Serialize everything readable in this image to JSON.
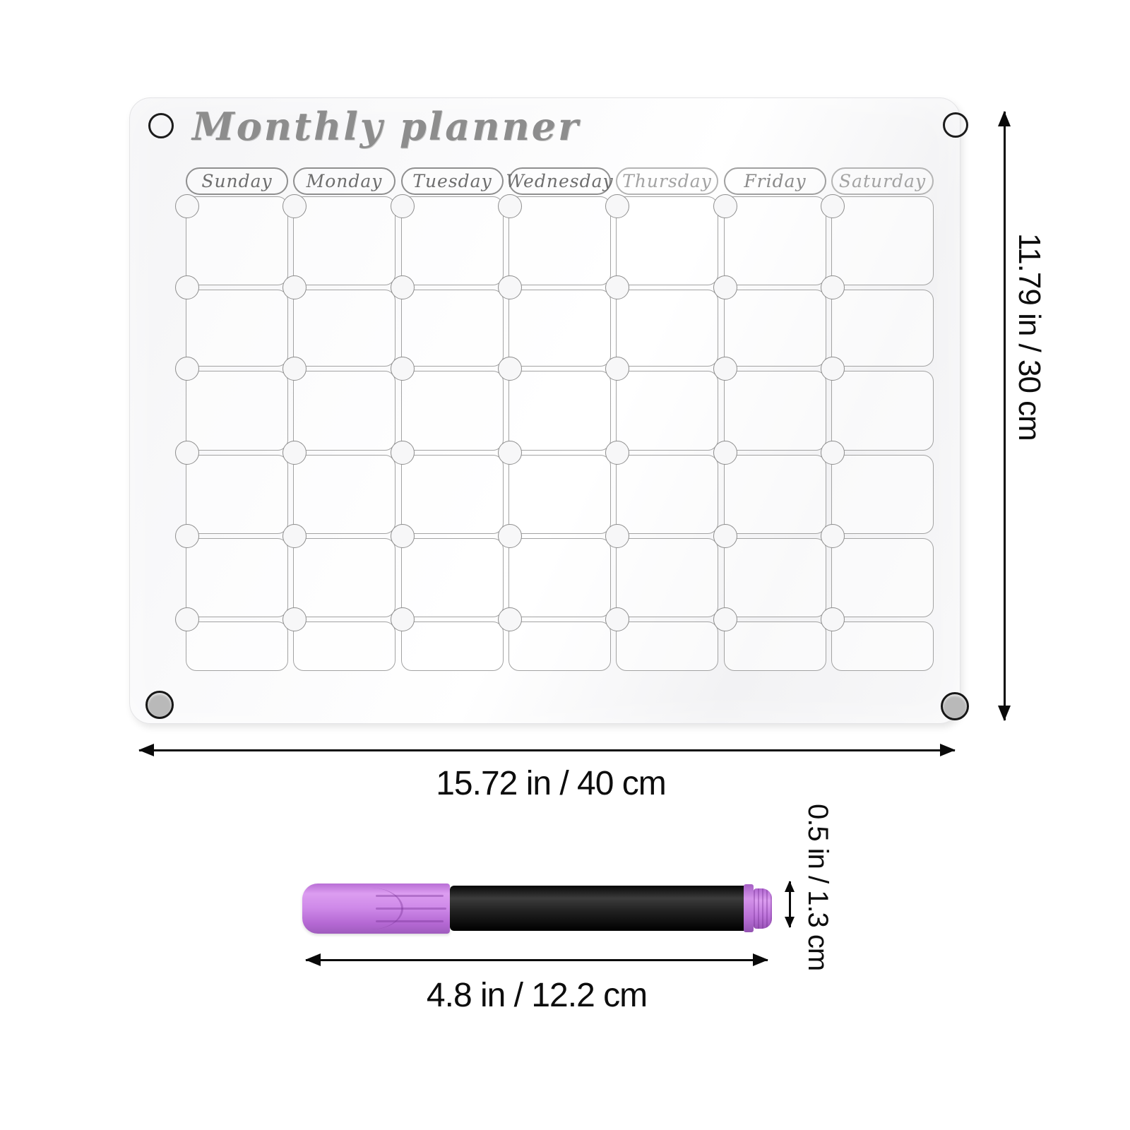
{
  "board": {
    "title": "Monthly planner",
    "days": [
      "Sunday",
      "Monday",
      "Tuesday",
      "Wednesday",
      "Thursday",
      "Friday",
      "Saturday"
    ],
    "rows": 6,
    "columns": 7
  },
  "dimensions": {
    "height_label": "11.79 in / 30 cm",
    "width_label": "15.72 in / 40 cm",
    "pen_length_label": "4.8 in / 12.2 cm",
    "pen_thickness_label": "0.5 in / 1.3 cm"
  },
  "colors": {
    "pen_cap": "#c87be0",
    "pen_body": "#161616",
    "grid_line": "#9e9e9e",
    "dimension_line": "#0a0a0a"
  }
}
